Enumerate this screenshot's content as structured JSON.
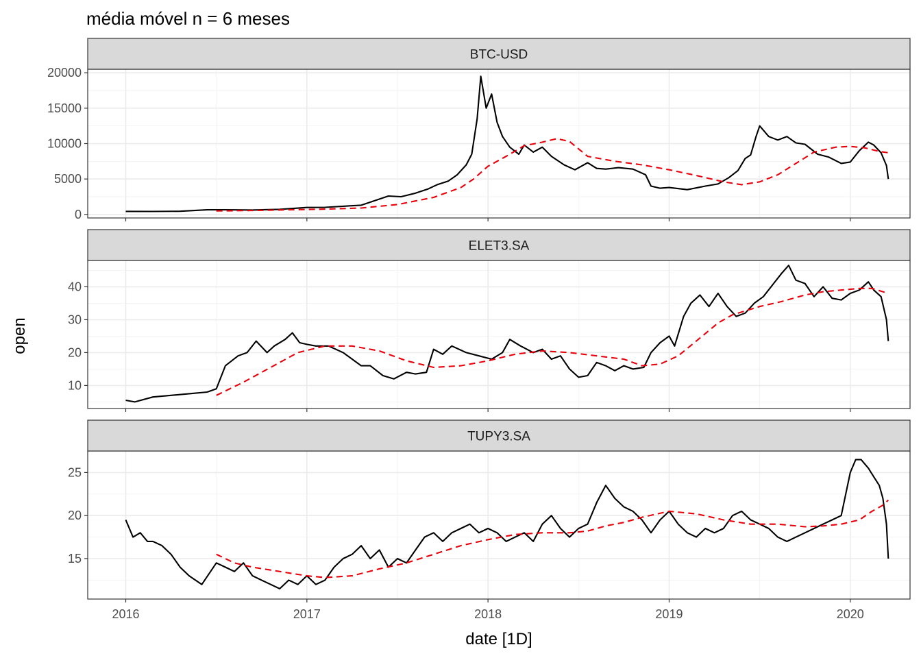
{
  "chart_data": {
    "type": "line",
    "title": "média móvel n = 6 meses",
    "xlabel": "date [1D]",
    "ylabel": "open",
    "xlim": [
      2015.79,
      2020.33
    ],
    "x_ticks": [
      2016,
      2017,
      2018,
      2019,
      2020
    ],
    "x_tick_labels": [
      "2016",
      "2017",
      "2018",
      "2019",
      "2020"
    ],
    "grid": true,
    "legend": "none",
    "colors": {
      "open": "#000000",
      "moving_average": "#e8000b"
    },
    "panels": [
      {
        "name": "BTC-USD",
        "ylim": [
          -500,
          20500
        ],
        "y_ticks": [
          0,
          5000,
          10000,
          15000,
          20000
        ],
        "y_tick_labels": [
          "0",
          "5000",
          "10000",
          "15000",
          "20000"
        ],
        "series": [
          {
            "role": "open",
            "x": [
              2016.0,
              2016.15,
              2016.3,
              2016.45,
              2016.55,
              2016.7,
              2016.85,
              2017.0,
              2017.1,
              2017.2,
              2017.3,
              2017.38,
              2017.45,
              2017.52,
              2017.6,
              2017.67,
              2017.72,
              2017.78,
              2017.83,
              2017.88,
              2017.91,
              2017.94,
              2017.96,
              2017.99,
              2018.02,
              2018.05,
              2018.08,
              2018.12,
              2018.17,
              2018.2,
              2018.25,
              2018.3,
              2018.35,
              2018.42,
              2018.48,
              2018.55,
              2018.6,
              2018.65,
              2018.72,
              2018.8,
              2018.87,
              2018.9,
              2018.95,
              2019.0,
              2019.1,
              2019.2,
              2019.27,
              2019.33,
              2019.38,
              2019.42,
              2019.45,
              2019.48,
              2019.5,
              2019.55,
              2019.6,
              2019.65,
              2019.7,
              2019.75,
              2019.82,
              2019.88,
              2019.95,
              2020.0,
              2020.05,
              2020.1,
              2020.13,
              2020.17,
              2020.2,
              2020.21
            ],
            "y": [
              430,
              420,
              450,
              650,
              650,
              620,
              720,
              980,
              1000,
              1150,
              1300,
              2000,
              2600,
              2500,
              3000,
              3600,
              4200,
              4700,
              5600,
              7000,
              8500,
              13500,
              19500,
              15000,
              17000,
              13000,
              11000,
              9500,
              8500,
              9800,
              8800,
              9500,
              8200,
              7000,
              6300,
              7300,
              6500,
              6400,
              6600,
              6400,
              5600,
              4000,
              3700,
              3800,
              3500,
              4000,
              4300,
              5200,
              6200,
              7900,
              8400,
              11000,
              12500,
              11000,
              10500,
              11000,
              10100,
              9900,
              8500,
              8100,
              7200,
              7400,
              9000,
              10200,
              9800,
              8700,
              6900,
              5000
            ]
          },
          {
            "role": "moving_average",
            "x": [
              2016.5,
              2016.7,
              2016.9,
              2017.1,
              2017.3,
              2017.5,
              2017.7,
              2017.85,
              2017.92,
              2018.0,
              2018.1,
              2018.2,
              2018.3,
              2018.38,
              2018.45,
              2018.55,
              2018.7,
              2018.85,
              2019.0,
              2019.15,
              2019.3,
              2019.4,
              2019.5,
              2019.6,
              2019.7,
              2019.8,
              2019.92,
              2020.0,
              2020.08,
              2020.16,
              2020.21
            ],
            "y": [
              500,
              550,
              650,
              750,
              900,
              1400,
              2400,
              3800,
              5000,
              6800,
              8200,
              9700,
              10200,
              10700,
              10300,
              8200,
              7500,
              7000,
              6300,
              5500,
              4600,
              4200,
              4600,
              5600,
              7200,
              8800,
              9500,
              9600,
              9400,
              8900,
              8700
            ]
          }
        ]
      },
      {
        "name": "ELET3.SA",
        "ylim": [
          3.0,
          48.0
        ],
        "y_ticks": [
          10,
          20,
          30,
          40
        ],
        "y_tick_labels": [
          "10",
          "20",
          "30",
          "40"
        ],
        "series": [
          {
            "role": "open",
            "x": [
              2016.0,
              2016.05,
              2016.15,
              2016.25,
              2016.35,
              2016.45,
              2016.5,
              2016.55,
              2016.62,
              2016.67,
              2016.72,
              2016.78,
              2016.82,
              2016.88,
              2016.92,
              2016.96,
              2017.0,
              2017.05,
              2017.12,
              2017.2,
              2017.25,
              2017.3,
              2017.35,
              2017.42,
              2017.48,
              2017.55,
              2017.6,
              2017.66,
              2017.7,
              2017.75,
              2017.8,
              2017.88,
              2017.95,
              2018.02,
              2018.08,
              2018.12,
              2018.18,
              2018.25,
              2018.3,
              2018.35,
              2018.4,
              2018.45,
              2018.5,
              2018.55,
              2018.6,
              2018.65,
              2018.7,
              2018.75,
              2018.8,
              2018.86,
              2018.9,
              2018.95,
              2019.0,
              2019.03,
              2019.08,
              2019.12,
              2019.17,
              2019.22,
              2019.27,
              2019.32,
              2019.37,
              2019.42,
              2019.47,
              2019.52,
              2019.57,
              2019.62,
              2019.66,
              2019.7,
              2019.75,
              2019.8,
              2019.85,
              2019.9,
              2019.95,
              2020.0,
              2020.05,
              2020.1,
              2020.13,
              2020.17,
              2020.2,
              2020.21
            ],
            "y": [
              5.5,
              5.0,
              6.5,
              7.0,
              7.5,
              8.0,
              9.0,
              16.0,
              19.0,
              20.0,
              23.5,
              20.0,
              22.0,
              24.0,
              26.0,
              23.0,
              22.5,
              22.0,
              22.0,
              20.0,
              18.0,
              16.0,
              16.0,
              13.0,
              12.0,
              14.0,
              13.5,
              14.0,
              21.0,
              19.5,
              22.0,
              20.0,
              19.0,
              18.0,
              20.0,
              24.0,
              22.0,
              20.0,
              21.0,
              18.0,
              19.0,
              15.0,
              12.5,
              13.0,
              17.0,
              16.0,
              14.5,
              16.0,
              15.0,
              15.5,
              20.0,
              23.0,
              25.0,
              22.0,
              31.0,
              35.0,
              37.5,
              34.0,
              38.0,
              34.0,
              31.0,
              32.0,
              35.0,
              37.0,
              40.5,
              44.0,
              46.5,
              42.0,
              41.0,
              37.0,
              40.0,
              36.5,
              36.0,
              38.0,
              39.0,
              41.5,
              39.0,
              37.0,
              30.0,
              23.5
            ]
          },
          {
            "role": "moving_average",
            "x": [
              2016.5,
              2016.65,
              2016.8,
              2016.95,
              2017.1,
              2017.25,
              2017.4,
              2017.55,
              2017.7,
              2017.85,
              2018.0,
              2018.15,
              2018.3,
              2018.45,
              2018.6,
              2018.75,
              2018.85,
              2018.95,
              2019.05,
              2019.15,
              2019.27,
              2019.35,
              2019.5,
              2019.62,
              2019.75,
              2019.85,
              2019.95,
              2020.05,
              2020.12,
              2020.18,
              2020.21
            ],
            "y": [
              7.0,
              11.0,
              15.5,
              20.0,
              22.0,
              22.0,
              20.5,
              17.5,
              15.5,
              16.0,
              17.5,
              19.5,
              20.5,
              20.0,
              19.0,
              18.0,
              16.0,
              16.5,
              19.0,
              23.5,
              29.0,
              31.5,
              34.0,
              35.5,
              37.5,
              38.5,
              39.0,
              39.5,
              39.5,
              38.5,
              38.0
            ]
          }
        ]
      },
      {
        "name": "TUPY3.SA",
        "ylim": [
          10.3,
          27.5
        ],
        "y_ticks": [
          15,
          20,
          25
        ],
        "y_tick_labels": [
          "15",
          "20",
          "25"
        ],
        "series": [
          {
            "role": "open",
            "x": [
              2016.0,
              2016.04,
              2016.08,
              2016.12,
              2016.15,
              2016.2,
              2016.25,
              2016.3,
              2016.35,
              2016.42,
              2016.5,
              2016.55,
              2016.6,
              2016.65,
              2016.7,
              2016.75,
              2016.8,
              2016.85,
              2016.9,
              2016.95,
              2017.0,
              2017.05,
              2017.1,
              2017.15,
              2017.2,
              2017.25,
              2017.3,
              2017.35,
              2017.4,
              2017.45,
              2017.5,
              2017.55,
              2017.6,
              2017.65,
              2017.7,
              2017.75,
              2017.8,
              2017.85,
              2017.9,
              2017.95,
              2018.0,
              2018.05,
              2018.1,
              2018.15,
              2018.2,
              2018.25,
              2018.3,
              2018.35,
              2018.4,
              2018.45,
              2018.5,
              2018.55,
              2018.6,
              2018.65,
              2018.7,
              2018.75,
              2018.8,
              2018.85,
              2018.9,
              2018.95,
              2019.0,
              2019.05,
              2019.1,
              2019.15,
              2019.2,
              2019.25,
              2019.3,
              2019.35,
              2019.4,
              2019.45,
              2019.5,
              2019.55,
              2019.6,
              2019.65,
              2019.7,
              2019.75,
              2019.8,
              2019.85,
              2019.9,
              2019.95,
              2020.0,
              2020.03,
              2020.06,
              2020.1,
              2020.13,
              2020.16,
              2020.18,
              2020.2,
              2020.21
            ],
            "y": [
              19.5,
              17.5,
              18.0,
              17.0,
              17.0,
              16.5,
              15.5,
              14.0,
              13.0,
              12.0,
              14.5,
              14.0,
              13.5,
              14.5,
              13.0,
              12.5,
              12.0,
              11.5,
              12.5,
              12.0,
              13.0,
              12.0,
              12.5,
              14.0,
              15.0,
              15.5,
              16.5,
              15.0,
              16.0,
              14.0,
              15.0,
              14.5,
              16.0,
              17.5,
              18.0,
              17.0,
              18.0,
              18.5,
              19.0,
              18.0,
              18.5,
              18.0,
              17.0,
              17.5,
              18.0,
              17.0,
              19.0,
              20.0,
              18.5,
              17.5,
              18.5,
              19.0,
              21.5,
              23.5,
              22.0,
              21.0,
              20.5,
              19.5,
              18.0,
              19.5,
              20.5,
              19.0,
              18.0,
              17.5,
              18.5,
              18.0,
              18.5,
              20.0,
              20.5,
              19.5,
              19.0,
              18.5,
              17.5,
              17.0,
              17.5,
              18.0,
              18.5,
              19.0,
              19.5,
              20.0,
              25.0,
              26.5,
              26.5,
              25.5,
              24.5,
              23.5,
              22.0,
              19.0,
              15.0
            ]
          },
          {
            "role": "moving_average",
            "x": [
              2016.5,
              2016.6,
              2016.7,
              2016.85,
              2017.0,
              2017.1,
              2017.25,
              2017.4,
              2017.55,
              2017.7,
              2017.85,
              2018.0,
              2018.15,
              2018.3,
              2018.45,
              2018.55,
              2018.65,
              2018.75,
              2018.85,
              2019.0,
              2019.15,
              2019.3,
              2019.45,
              2019.6,
              2019.75,
              2019.85,
              2019.95,
              2020.05,
              2020.12,
              2020.18,
              2020.21
            ],
            "y": [
              15.5,
              14.5,
              14.0,
              13.5,
              13.0,
              12.8,
              13.0,
              13.8,
              14.5,
              15.5,
              16.5,
              17.2,
              17.8,
              18.0,
              18.0,
              18.2,
              18.8,
              19.2,
              19.8,
              20.5,
              20.2,
              19.5,
              19.0,
              19.0,
              18.7,
              18.8,
              19.0,
              19.5,
              20.5,
              21.2,
              21.8
            ]
          }
        ]
      }
    ]
  }
}
